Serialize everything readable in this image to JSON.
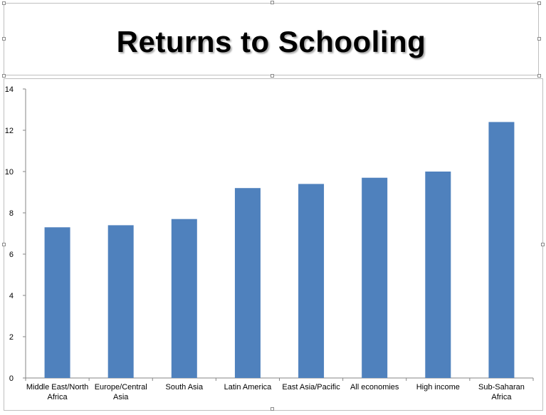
{
  "title": "Returns to Schooling",
  "chart_data": {
    "type": "bar",
    "title": "Returns to Schooling",
    "xlabel": "",
    "ylabel": "",
    "ylim": [
      0,
      14
    ],
    "yticks": [
      0,
      2,
      4,
      6,
      8,
      10,
      12,
      14
    ],
    "grid": false,
    "legend": "none",
    "bar_color": "#4F81BD",
    "categories": [
      [
        "Middle East/North",
        "Africa"
      ],
      [
        "Europe/Central",
        "Asia"
      ],
      [
        "South Asia"
      ],
      [
        "Latin America"
      ],
      [
        "East Asia/Pacific"
      ],
      [
        "All economies"
      ],
      [
        "High income"
      ],
      [
        "Sub-Saharan",
        "Africa"
      ]
    ],
    "values": [
      7.3,
      7.4,
      7.7,
      9.2,
      9.4,
      9.7,
      10.0,
      12.4
    ]
  }
}
